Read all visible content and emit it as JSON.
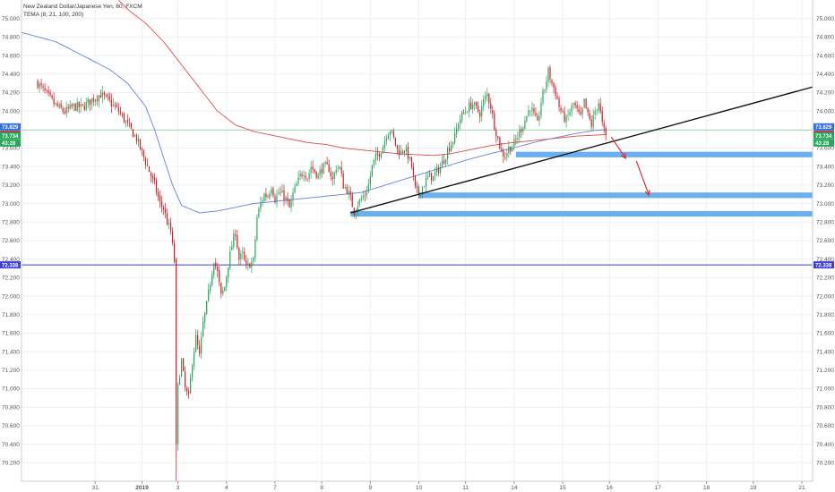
{
  "chart_data": {
    "type": "candlestick",
    "title": "New Zealand Dollar/Japanese Yen, 60, FXCM",
    "indicator": "TEMA (8, 21, 100, 200)",
    "ylim": [
      70.0,
      75.2
    ],
    "y_ticks": [
      "70.200",
      "70.400",
      "70.600",
      "70.800",
      "71.000",
      "71.200",
      "71.400",
      "71.600",
      "71.800",
      "72.000",
      "72.200",
      "72.400",
      "72.600",
      "72.800",
      "73.000",
      "73.200",
      "73.400",
      "73.600",
      "73.800",
      "74.000",
      "74.200",
      "74.400",
      "74.600",
      "74.800",
      "75.000"
    ],
    "x_ticks": [
      {
        "label": "31",
        "i": 32
      },
      {
        "label": "2019",
        "i": 58
      },
      {
        "label": "3",
        "i": 78
      },
      {
        "label": "4",
        "i": 105
      },
      {
        "label": "7",
        "i": 132
      },
      {
        "label": "8",
        "i": 158
      },
      {
        "label": "9",
        "i": 185
      },
      {
        "label": "10",
        "i": 212
      },
      {
        "label": "11",
        "i": 238
      },
      {
        "label": "14",
        "i": 265
      },
      {
        "label": "15",
        "i": 292
      },
      {
        "label": "16",
        "i": 318
      },
      {
        "label": "17",
        "i": 345
      },
      {
        "label": "18",
        "i": 372
      },
      {
        "label": "19",
        "i": 398
      },
      {
        "label": "21",
        "i": 425
      }
    ],
    "index_range": [
      -9,
      431
    ],
    "close_anchors": [
      [
        0,
        74.3
      ],
      [
        5,
        74.18
      ],
      [
        10,
        74.06
      ],
      [
        15,
        73.99
      ],
      [
        20,
        74.05
      ],
      [
        25,
        74.04
      ],
      [
        30,
        74.12
      ],
      [
        35,
        74.18
      ],
      [
        40,
        74.1
      ],
      [
        45,
        74.0
      ],
      [
        50,
        73.85
      ],
      [
        55,
        73.7
      ],
      [
        60,
        73.45
      ],
      [
        65,
        73.2
      ],
      [
        68,
        73.0
      ],
      [
        70,
        72.95
      ],
      [
        72,
        72.8
      ],
      [
        74,
        72.7
      ],
      [
        76,
        72.38
      ],
      [
        77,
        70.4
      ],
      [
        78,
        71.05
      ],
      [
        80,
        71.3
      ],
      [
        82,
        71.0
      ],
      [
        84,
        70.9
      ],
      [
        86,
        71.3
      ],
      [
        88,
        71.55
      ],
      [
        90,
        71.35
      ],
      [
        92,
        71.7
      ],
      [
        94,
        71.9
      ],
      [
        96,
        72.15
      ],
      [
        98,
        72.4
      ],
      [
        100,
        72.25
      ],
      [
        102,
        72.0
      ],
      [
        104,
        72.1
      ],
      [
        106,
        72.35
      ],
      [
        108,
        72.55
      ],
      [
        110,
        72.7
      ],
      [
        112,
        72.4
      ],
      [
        114,
        72.45
      ],
      [
        116,
        72.3
      ],
      [
        118,
        72.35
      ],
      [
        120,
        72.38
      ],
      [
        122,
        72.85
      ],
      [
        124,
        73.0
      ],
      [
        126,
        73.1
      ],
      [
        128,
        73.08
      ],
      [
        130,
        73.2
      ],
      [
        132,
        73.05
      ],
      [
        134,
        73.12
      ],
      [
        136,
        73.1
      ],
      [
        138,
        73.05
      ],
      [
        140,
        72.95
      ],
      [
        142,
        73.1
      ],
      [
        144,
        73.2
      ],
      [
        146,
        73.3
      ],
      [
        148,
        73.35
      ],
      [
        150,
        73.28
      ],
      [
        152,
        73.4
      ],
      [
        154,
        73.35
      ],
      [
        156,
        73.3
      ],
      [
        158,
        73.38
      ],
      [
        160,
        73.4
      ],
      [
        162,
        73.38
      ],
      [
        164,
        73.25
      ],
      [
        166,
        73.4
      ],
      [
        168,
        73.38
      ],
      [
        170,
        73.2
      ],
      [
        172,
        73.15
      ],
      [
        174,
        73.05
      ],
      [
        176,
        72.92
      ],
      [
        178,
        73.0
      ],
      [
        180,
        73.05
      ],
      [
        182,
        73.1
      ],
      [
        184,
        73.2
      ],
      [
        186,
        73.4
      ],
      [
        188,
        73.5
      ],
      [
        190,
        73.55
      ],
      [
        192,
        73.62
      ],
      [
        194,
        73.75
      ],
      [
        196,
        73.8
      ],
      [
        198,
        73.7
      ],
      [
        200,
        73.58
      ],
      [
        202,
        73.55
      ],
      [
        204,
        73.6
      ],
      [
        206,
        73.52
      ],
      [
        208,
        73.4
      ],
      [
        210,
        73.15
      ],
      [
        212,
        73.1
      ],
      [
        214,
        73.18
      ],
      [
        216,
        73.25
      ],
      [
        218,
        73.3
      ],
      [
        220,
        73.28
      ],
      [
        222,
        73.35
      ],
      [
        224,
        73.4
      ],
      [
        226,
        73.48
      ],
      [
        228,
        73.58
      ],
      [
        230,
        73.65
      ],
      [
        232,
        73.72
      ],
      [
        234,
        73.88
      ],
      [
        236,
        73.95
      ],
      [
        238,
        74.0
      ],
      [
        240,
        74.05
      ],
      [
        242,
        74.08
      ],
      [
        244,
        74.02
      ],
      [
        246,
        73.98
      ],
      [
        248,
        74.1
      ],
      [
        250,
        74.18
      ],
      [
        252,
        74.05
      ],
      [
        254,
        73.85
      ],
      [
        256,
        73.7
      ],
      [
        258,
        73.55
      ],
      [
        260,
        73.52
      ],
      [
        262,
        73.6
      ],
      [
        264,
        73.62
      ],
      [
        266,
        73.68
      ],
      [
        268,
        73.78
      ],
      [
        270,
        73.85
      ],
      [
        272,
        73.95
      ],
      [
        274,
        74.05
      ],
      [
        276,
        73.95
      ],
      [
        278,
        73.85
      ],
      [
        280,
        74.1
      ],
      [
        282,
        74.25
      ],
      [
        284,
        74.43
      ],
      [
        286,
        74.3
      ],
      [
        288,
        74.2
      ],
      [
        290,
        74.05
      ],
      [
        292,
        73.95
      ],
      [
        294,
        73.9
      ],
      [
        296,
        74.0
      ],
      [
        298,
        74.08
      ],
      [
        300,
        74.0
      ],
      [
        302,
        73.92
      ],
      [
        304,
        74.1
      ],
      [
        306,
        73.95
      ],
      [
        308,
        73.85
      ],
      [
        310,
        74.0
      ],
      [
        312,
        74.1
      ],
      [
        314,
        73.85
      ],
      [
        316,
        73.72
      ]
    ],
    "tema_red_anchors": [
      [
        -9,
        75.25
      ],
      [
        40,
        75.3
      ],
      [
        50,
        75.1
      ],
      [
        60,
        74.95
      ],
      [
        70,
        74.75
      ],
      [
        80,
        74.5
      ],
      [
        90,
        74.25
      ],
      [
        100,
        74.0
      ],
      [
        110,
        73.85
      ],
      [
        120,
        73.78
      ],
      [
        130,
        73.74
      ],
      [
        140,
        73.7
      ],
      [
        150,
        73.66
      ],
      [
        160,
        73.64
      ],
      [
        170,
        73.6
      ],
      [
        180,
        73.58
      ],
      [
        190,
        73.56
      ],
      [
        200,
        73.54
      ],
      [
        210,
        73.53
      ],
      [
        220,
        73.52
      ],
      [
        230,
        73.54
      ],
      [
        240,
        73.58
      ],
      [
        250,
        73.62
      ],
      [
        260,
        73.65
      ],
      [
        270,
        73.67
      ],
      [
        280,
        73.69
      ],
      [
        290,
        73.71
      ],
      [
        300,
        73.73
      ],
      [
        310,
        73.74
      ],
      [
        316,
        73.745
      ]
    ],
    "tema_blue_anchors": [
      [
        -9,
        74.85
      ],
      [
        10,
        74.75
      ],
      [
        20,
        74.65
      ],
      [
        30,
        74.55
      ],
      [
        40,
        74.45
      ],
      [
        50,
        74.3
      ],
      [
        60,
        74.05
      ],
      [
        65,
        73.8
      ],
      [
        70,
        73.5
      ],
      [
        75,
        73.2
      ],
      [
        80,
        72.98
      ],
      [
        90,
        72.9
      ],
      [
        100,
        72.92
      ],
      [
        110,
        72.96
      ],
      [
        120,
        73.0
      ],
      [
        130,
        73.02
      ],
      [
        140,
        73.04
      ],
      [
        150,
        73.06
      ],
      [
        160,
        73.08
      ],
      [
        170,
        73.1
      ],
      [
        180,
        73.12
      ],
      [
        190,
        73.18
      ],
      [
        200,
        73.24
      ],
      [
        210,
        73.3
      ],
      [
        220,
        73.36
      ],
      [
        230,
        73.42
      ],
      [
        240,
        73.48
      ],
      [
        250,
        73.53
      ],
      [
        260,
        73.58
      ],
      [
        270,
        73.63
      ],
      [
        280,
        73.68
      ],
      [
        290,
        73.72
      ],
      [
        300,
        73.76
      ],
      [
        310,
        73.79
      ],
      [
        316,
        73.8
      ]
    ],
    "seed": 7,
    "horizontal_lines": [
      {
        "price": 72.338,
        "label": "72.338",
        "color": "#3f3fd8"
      },
      {
        "price": 73.795,
        "color": "#a8d8b0"
      }
    ],
    "price_badges": [
      {
        "price": 73.829,
        "label": "73.829",
        "color": "#2f6fe0"
      },
      {
        "price": 73.748,
        "label": "73.748",
        "color": "#d21f27"
      },
      {
        "price": 73.734,
        "label": "73.734",
        "color": "#26a65b"
      },
      {
        "price": 73.655,
        "label": "43:28",
        "color": "#26a65b"
      },
      {
        "price": 72.338,
        "label": "72.338",
        "color": "#3f3fd8"
      }
    ],
    "trendline": {
      "from": [
        174,
        72.9
      ],
      "to": [
        431,
        74.26
      ],
      "color": "#111111"
    },
    "support_zones": [
      {
        "from_i": 266,
        "to_i": 431,
        "top": 73.56,
        "bottom": 73.5
      },
      {
        "from_i": 212,
        "to_i": 431,
        "top": 73.12,
        "bottom": 73.06
      },
      {
        "from_i": 174,
        "to_i": 431,
        "top": 72.92,
        "bottom": 72.86
      }
    ],
    "arrows": [
      {
        "from": [
          319,
          73.72
        ],
        "to": [
          327,
          73.49
        ]
      },
      {
        "from": [
          333,
          73.46
        ],
        "to": [
          340,
          73.09
        ]
      }
    ],
    "colors": {
      "up": "#26a65b",
      "down": "#d21f27",
      "tema_red": "#e34b4b",
      "tema_blue": "#6b7fd6",
      "zone": "#6ab0ef",
      "grid": "#eef1f4",
      "axis": "#cccccc"
    }
  }
}
